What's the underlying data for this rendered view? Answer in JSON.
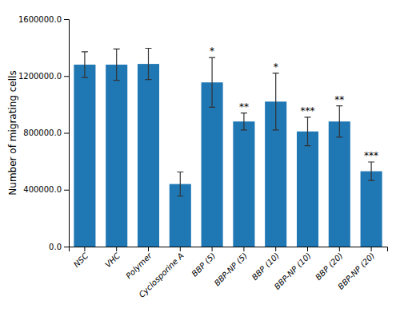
{
  "chart_data": {
    "type": "bar",
    "ylabel": "Number of migrating cells",
    "categories": [
      "NSC",
      "VHC",
      "Polymer",
      "Cyclosporine A",
      "BBP (5)",
      "BBP-NP (5)",
      "BBP (10)",
      "BBP-NP (10)",
      "BBP (20)",
      "BBP-NP (20)"
    ],
    "values": [
      1280000,
      1280000,
      1285000,
      440000,
      1155000,
      880000,
      1020000,
      810000,
      880000,
      530000
    ],
    "errors": [
      90000,
      110000,
      110000,
      85000,
      175000,
      60000,
      200000,
      100000,
      110000,
      65000
    ],
    "annotations": [
      null,
      null,
      null,
      null,
      "*",
      "**",
      "*",
      "***",
      "**",
      "***"
    ],
    "color": "#1f77b4",
    "ylim": [
      0,
      1600000
    ],
    "yticks": [
      {
        "value": 0.0,
        "label": "0.0"
      },
      {
        "value": 400000.0,
        "label": "400000.0"
      },
      {
        "value": 800000.0,
        "label": "800000.0"
      },
      {
        "value": 1200000.0,
        "label": "1200000.0"
      },
      {
        "value": 1600000.0,
        "label": "1600000.0"
      }
    ]
  }
}
